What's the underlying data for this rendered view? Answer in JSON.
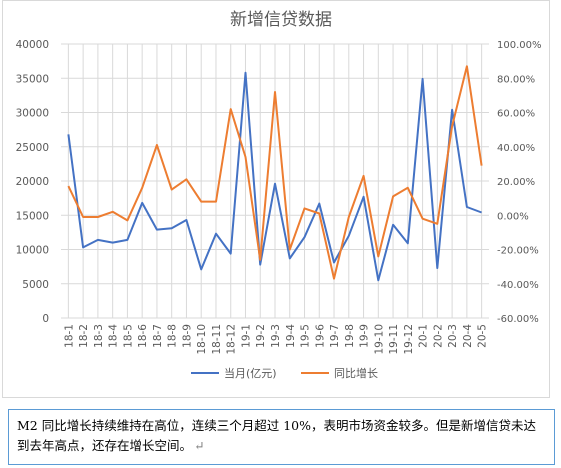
{
  "chart_data": {
    "type": "line",
    "title": "新增信贷数据",
    "categories": [
      "18-1",
      "18-2",
      "18-3",
      "18-4",
      "18-5",
      "18-6",
      "18-7",
      "18-8",
      "18-9",
      "18-10",
      "18-11",
      "18-12",
      "19-1",
      "19-2",
      "19-3",
      "19-4",
      "19-5",
      "19-6",
      "19-7",
      "19-8",
      "19-9",
      "19-10",
      "19-11",
      "19-12",
      "20-1",
      "20-2",
      "20-3",
      "20-4",
      "20-5"
    ],
    "y_left": {
      "min": 0,
      "max": 40000,
      "step": 5000,
      "ticks": [
        "0",
        "5000",
        "10000",
        "15000",
        "20000",
        "25000",
        "30000",
        "35000",
        "40000"
      ]
    },
    "y_right": {
      "min": -0.6,
      "max": 1.0,
      "step": 0.2,
      "ticks": [
        "-60.00%",
        "-40.00%",
        "-20.00%",
        "0.00%",
        "20.00%",
        "40.00%",
        "60.00%",
        "80.00%",
        "100.00%"
      ]
    },
    "grid": true,
    "legend_position": "bottom",
    "series": [
      {
        "name": "当月(亿元)",
        "axis": "left",
        "color": "#4472c4",
        "values": [
          26800,
          10300,
          11400,
          11000,
          11400,
          16800,
          12900,
          13100,
          14300,
          7100,
          12300,
          9400,
          35800,
          7800,
          19600,
          8700,
          11800,
          16700,
          8100,
          12000,
          17700,
          5500,
          13600,
          10900,
          34900,
          7300,
          30400,
          16200,
          15400
        ]
      },
      {
        "name": "同比增长",
        "axis": "right",
        "color": "#ed7d31",
        "values": [
          0.17,
          -0.01,
          -0.01,
          0.02,
          -0.03,
          0.16,
          0.41,
          0.15,
          0.21,
          0.08,
          0.08,
          0.62,
          0.34,
          -0.26,
          0.72,
          -0.2,
          0.04,
          0.01,
          -0.37,
          -0.01,
          0.23,
          -0.24,
          0.11,
          0.16,
          -0.02,
          -0.05,
          0.52,
          0.87,
          0.29
        ]
      }
    ]
  },
  "caption": {
    "text": "M2 同比增长持续维持在高位，连续三个月超过 10%，表明市场资金较多。但是新增信贷未达到去年高点，还存在增长空间。",
    "mark": "↵"
  }
}
